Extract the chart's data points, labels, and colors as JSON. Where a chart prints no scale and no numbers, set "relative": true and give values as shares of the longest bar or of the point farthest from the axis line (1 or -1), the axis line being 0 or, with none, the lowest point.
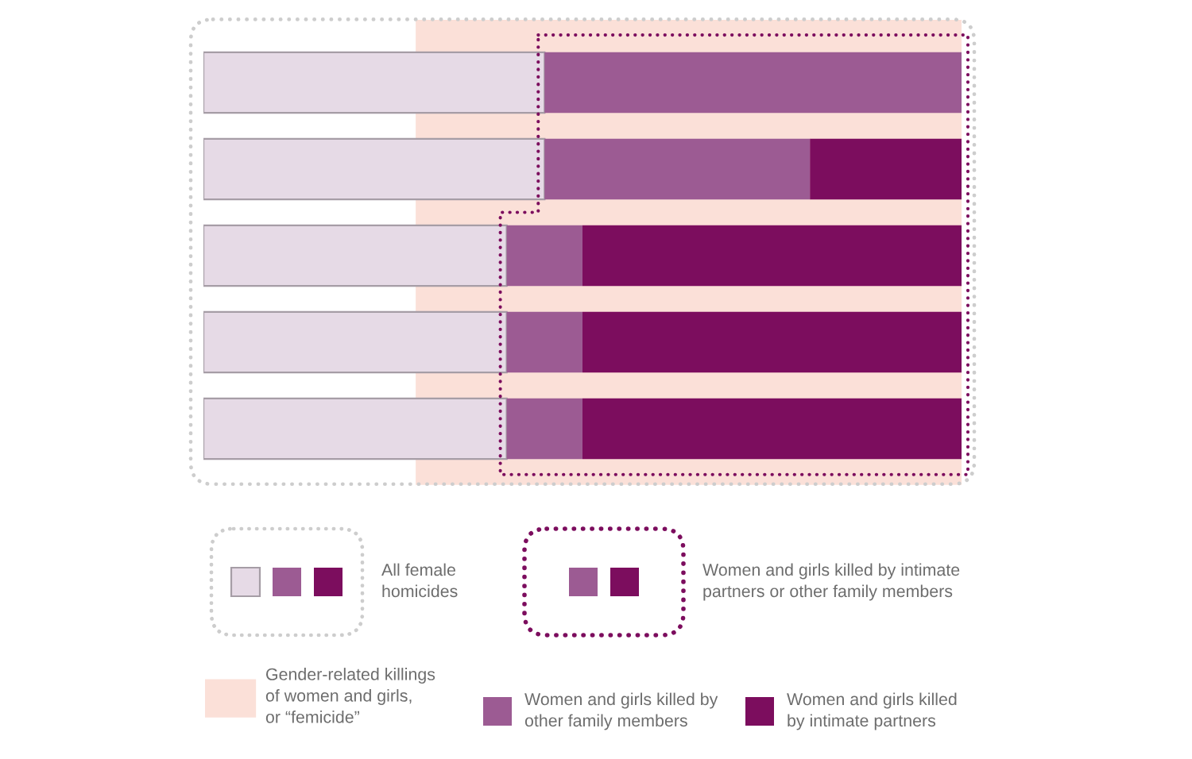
{
  "chart_data": {
    "type": "bar",
    "orientation": "horizontal",
    "stacked": true,
    "relative": true,
    "categories": [
      null,
      null,
      null,
      null,
      null
    ],
    "series": [
      {
        "color": "#e6dae6",
        "values": [
          0.45,
          0.45,
          0.4,
          0.4,
          0.4
        ]
      },
      {
        "name": "Women and girls killed by\nother family members",
        "color": "#9c5b93",
        "values": [
          0.55,
          0.35,
          0.1,
          0.1,
          0.1
        ]
      },
      {
        "name": "Women and girls killed\nby intimate partners",
        "color": "#7c0d5e",
        "values": [
          0,
          0.2,
          0.5,
          0.5,
          0.5
        ]
      }
    ],
    "bands": [
      {
        "axis": "x",
        "from": 0.28,
        "to": 1,
        "label": "Gender-related killings\nof women and girls,\nor “femicide”",
        "color": "#fbe0d8"
      }
    ],
    "annotations": [
      "All female\nhomicides",
      "Women and girls killed by intimate\npartners or other family members"
    ],
    "legend": "bottom"
  }
}
